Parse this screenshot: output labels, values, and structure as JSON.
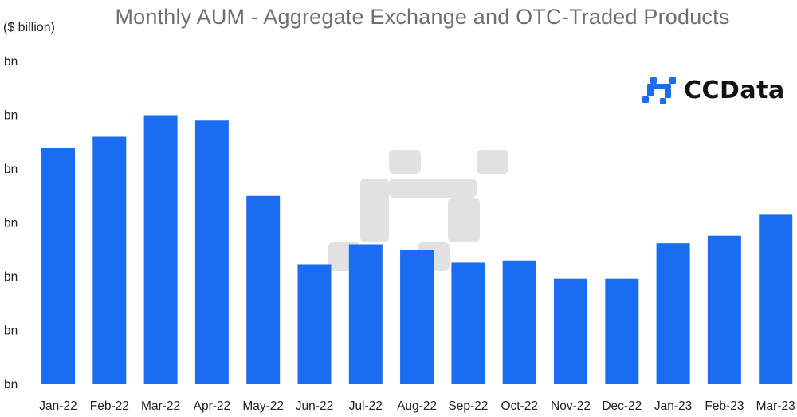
{
  "chart_data": {
    "type": "bar",
    "title": "Monthly AUM - Aggregate Exchange and OTC-Traded Products",
    "ylabel": "($ billion)",
    "categories": [
      "Jan-22",
      "Feb-22",
      "Mar-22",
      "Apr-22",
      "May-22",
      "Jun-22",
      "Jul-22",
      "Aug-22",
      "Sep-22",
      "Oct-22",
      "Nov-22",
      "Dec-22",
      "Jan-23",
      "Feb-23",
      "Mar-23"
    ],
    "values": [
      44.0,
      46.0,
      50.0,
      49.0,
      35.0,
      22.3,
      26.0,
      25.0,
      22.6,
      23.0,
      19.6,
      19.6,
      26.2,
      27.6,
      31.5
    ],
    "ylim": [
      0,
      60
    ],
    "yticks": [
      "bn",
      "bn",
      "bn",
      "bn",
      "bn",
      "bn",
      "bn"
    ],
    "bar_color": "#1a6cf0",
    "grid": false,
    "legend": "none"
  },
  "logo": {
    "text": "CCData",
    "icon": "ccdata-logo-icon"
  }
}
